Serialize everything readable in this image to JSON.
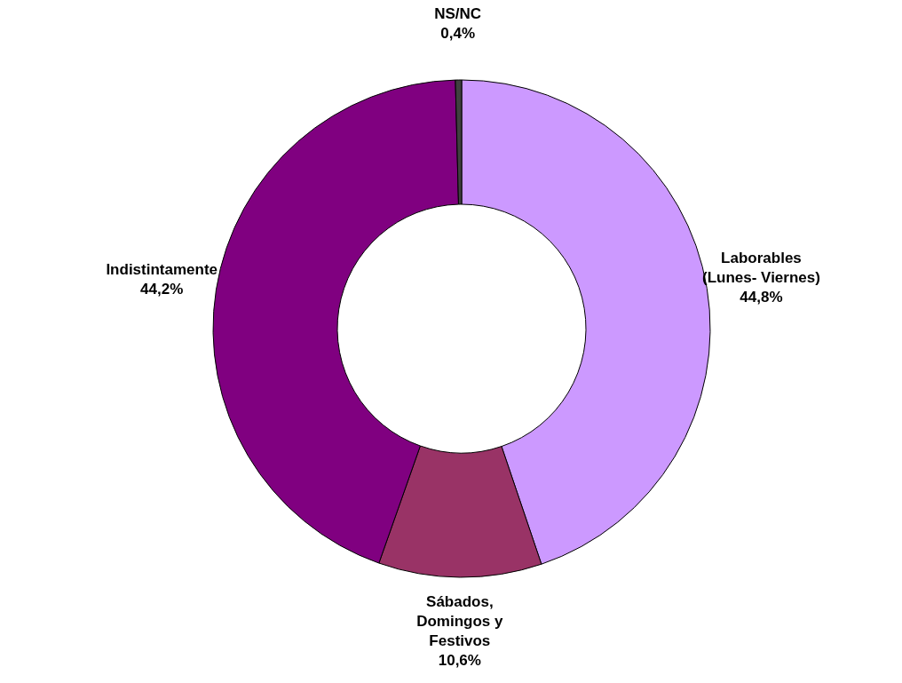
{
  "chart_data": {
    "type": "donut",
    "categories": [
      "Laborables (Lunes- Viernes)",
      "Sábados, Domingos y Festivos",
      "Indistintamente",
      "NS/NC"
    ],
    "values": [
      44.8,
      10.6,
      44.2,
      0.4
    ],
    "colors": [
      "#cc99ff",
      "#993366",
      "#800080",
      "#404040"
    ],
    "value_labels": [
      "44,8%",
      "10,6%",
      "44,2%",
      "0,4%"
    ]
  }
}
